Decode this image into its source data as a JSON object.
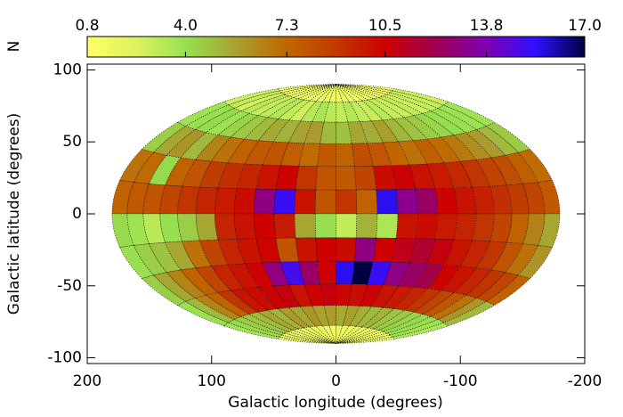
{
  "chart_data": {
    "type": "heatmap",
    "projection": "hammer-aitoff",
    "xlabel": "Galactic longitude (degrees)",
    "ylabel": "Galactic latitude (degrees)",
    "x": [
      172.5,
      157.5,
      142.5,
      127.5,
      112.5,
      97.5,
      82.5,
      67.5,
      52.5,
      37.5,
      22.5,
      7.5,
      -7.5,
      -22.5,
      -37.5,
      -52.5,
      -67.5,
      -82.5,
      -97.5,
      -112.5,
      -127.5,
      -142.5,
      -157.5,
      -172.5
    ],
    "y": [
      82.5,
      67.5,
      52.5,
      37.5,
      22.5,
      7.5,
      -7.5,
      -22.5,
      -37.5,
      -52.5,
      -67.5,
      -82.5
    ],
    "values": [
      [
        1.5,
        1.4,
        1.6,
        1.3,
        1.5,
        1.8,
        1.6,
        1.4,
        1.7,
        1.5,
        1.9,
        1.6,
        1.4,
        1.8,
        1.5,
        1.3,
        1.6,
        1.7,
        1.4,
        1.5,
        1.6,
        1.3,
        1.5,
        1.4
      ],
      [
        2.8,
        3.0,
        2.6,
        3.2,
        2.9,
        3.1,
        3.4,
        3.0,
        2.7,
        3.3,
        3.6,
        3.2,
        3.0,
        3.4,
        3.1,
        2.9,
        3.2,
        3.0,
        2.8,
        3.1,
        2.7,
        3.0,
        2.9,
        2.8
      ],
      [
        3.8,
        4.0,
        4.2,
        3.9,
        4.4,
        4.6,
        5.0,
        5.4,
        5.2,
        5.6,
        5.8,
        5.0,
        4.8,
        5.5,
        5.3,
        5.7,
        5.1,
        4.8,
        4.6,
        4.3,
        4.1,
        4.0,
        3.9,
        3.8
      ],
      [
        4.5,
        5.5,
        6.0,
        5.0,
        6.5,
        7.0,
        7.5,
        7.8,
        8.0,
        7.6,
        7.2,
        7.8,
        7.5,
        8.2,
        7.9,
        7.4,
        7.0,
        7.6,
        7.2,
        6.8,
        6.2,
        5.8,
        5.0,
        4.6
      ],
      [
        7.0,
        7.2,
        4.2,
        7.5,
        8.0,
        8.8,
        9.2,
        9.5,
        10.0,
        10.5,
        9.0,
        8.0,
        7.8,
        8.5,
        10.2,
        10.6,
        10.0,
        9.8,
        9.4,
        9.0,
        8.6,
        8.2,
        7.6,
        7.2
      ],
      [
        7.5,
        7.8,
        8.0,
        8.5,
        9.0,
        9.5,
        9.8,
        10.2,
        13.0,
        15.2,
        10.0,
        8.0,
        9.0,
        7.5,
        15.5,
        13.2,
        12.5,
        10.5,
        10.0,
        9.6,
        9.2,
        8.8,
        8.5,
        7.8
      ],
      [
        4.2,
        3.8,
        3.2,
        4.0,
        4.5,
        5.5,
        9.5,
        10.0,
        10.5,
        9.8,
        5.5,
        4.0,
        3.0,
        5.2,
        3.5,
        10.0,
        10.2,
        9.8,
        9.5,
        9.0,
        8.5,
        7.5,
        6.5,
        5.5
      ],
      [
        4.0,
        4.5,
        4.8,
        5.5,
        7.0,
        8.5,
        9.5,
        10.0,
        10.4,
        8.0,
        10.0,
        10.5,
        10.2,
        13.0,
        10.5,
        11.0,
        11.5,
        10.8,
        10.0,
        9.5,
        9.0,
        8.0,
        7.0,
        6.0
      ],
      [
        4.5,
        5.5,
        6.5,
        7.5,
        8.5,
        9.5,
        10.0,
        10.5,
        13.0,
        15.0,
        12.5,
        10.5,
        15.5,
        17.0,
        15.2,
        13.0,
        12.5,
        12.0,
        10.5,
        10.0,
        9.5,
        9.0,
        8.5,
        7.5
      ],
      [
        4.0,
        5.0,
        6.5,
        7.5,
        9.0,
        10.0,
        10.2,
        10.5,
        10.8,
        10.0,
        10.5,
        10.8,
        10.4,
        10.2,
        10.6,
        10.0,
        9.8,
        9.5,
        9.0,
        8.5,
        8.0,
        7.0,
        6.0,
        5.0
      ],
      [
        3.8,
        4.2,
        4.5,
        4.8,
        5.0,
        5.5,
        5.2,
        5.8,
        5.5,
        6.0,
        5.6,
        5.8,
        5.4,
        5.7,
        5.3,
        5.0,
        5.2,
        4.8,
        4.6,
        4.4,
        4.2,
        4.0,
        3.8,
        3.6
      ],
      [
        1.5,
        1.8,
        1.4,
        2.0,
        1.6,
        1.7,
        1.5,
        1.9,
        1.6,
        1.4,
        1.8,
        1.5,
        1.7,
        1.6,
        1.4,
        1.9,
        1.5,
        1.6,
        1.8,
        1.4,
        1.5,
        1.7,
        1.6,
        1.5
      ]
    ],
    "xlim": [
      200,
      -200
    ],
    "ylim": [
      -104,
      104
    ],
    "xticks": [
      200,
      100,
      0,
      -100,
      -200
    ],
    "yticks": [
      100,
      50,
      0,
      -50,
      -100
    ],
    "colorbar": {
      "label": "N",
      "lim": [
        0.8,
        17
      ],
      "ticks": [
        0.8,
        {
          "value": 4,
          "label": "4.0"
        },
        7.3,
        10.5,
        13.8,
        {
          "value": 17,
          "label": "17.0"
        }
      ],
      "colormap": [
        "#ffff66",
        "#dcf260",
        "#96e050",
        "#a8a030",
        "#c06800",
        "#c03a00",
        "#cc0000",
        "#a00050",
        "#8000b0",
        "#3010ff",
        "#000040"
      ]
    }
  }
}
